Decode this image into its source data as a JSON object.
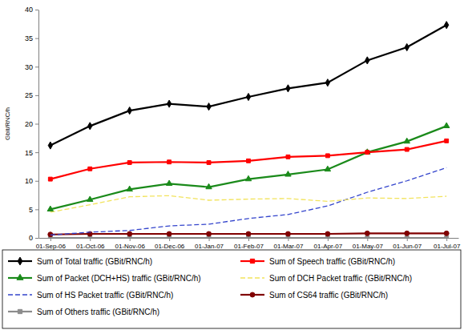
{
  "chart_data": {
    "type": "line",
    "y_label": "Gbit/RNC/h",
    "categories": [
      "01-Sep-06",
      "01-Oct-06",
      "01-Nov-06",
      "01-Dec-06",
      "01-Jan-07",
      "01-Feb-07",
      "01-Mar-07",
      "01-Apr-07",
      "01-May-07",
      "01-Jun-07",
      "01-Jul-07"
    ],
    "ylim": [
      0,
      40
    ],
    "yticks": [
      0,
      5,
      10,
      15,
      20,
      25,
      30,
      35,
      40
    ],
    "grid": false,
    "legend": "bottom",
    "series": [
      {
        "name": "Sum of Total traffic (GBit/RNC/h)",
        "color": "#000000",
        "marker": "diamond",
        "line_style": "solid",
        "values": [
          16.2,
          19.6,
          22.3,
          23.5,
          23.0,
          24.7,
          26.2,
          27.2,
          31.1,
          33.4,
          37.3
        ]
      },
      {
        "name": "Sum of Speech traffic (GBit/RNC/h)",
        "color": "#ff0000",
        "marker": "square",
        "line_style": "solid",
        "values": [
          10.3,
          12.1,
          13.2,
          13.3,
          13.2,
          13.5,
          14.2,
          14.4,
          15.0,
          15.5,
          17.0
        ]
      },
      {
        "name": "Sum of Packet (DCH+HS) traffic (GBit/RNC/h)",
        "color": "#1a8a1a",
        "marker": "triangle",
        "line_style": "solid",
        "values": [
          5.0,
          6.7,
          8.5,
          9.5,
          8.9,
          10.3,
          11.1,
          12.0,
          15.0,
          16.9,
          19.6
        ]
      },
      {
        "name": "Sum of DCH Packet traffic (GBit/RNC/h)",
        "color": "#f2e35c",
        "marker": "none",
        "line_style": "dashed",
        "values": [
          4.5,
          5.8,
          7.2,
          7.4,
          6.6,
          6.8,
          6.9,
          6.4,
          7.0,
          6.9,
          7.3
        ]
      },
      {
        "name": "Sum of HS Packet traffic (GBit/RNC/h)",
        "color": "#3344cc",
        "marker": "none",
        "line_style": "dashed",
        "values": [
          0.5,
          1.0,
          1.3,
          2.1,
          2.4,
          3.4,
          4.1,
          5.6,
          8.0,
          10.0,
          12.3
        ]
      },
      {
        "name": "Sum of CS64 traffic (GBit/RNC/h)",
        "color": "#800000",
        "marker": "circle",
        "line_style": "solid",
        "values": [
          0.6,
          0.7,
          0.7,
          0.7,
          0.7,
          0.7,
          0.7,
          0.7,
          0.8,
          0.8,
          0.8
        ]
      },
      {
        "name": "Sum of Others traffic (GBit/RNC/h)",
        "color": "#8c8c8c",
        "marker": "square",
        "line_style": "solid",
        "values": [
          0,
          0,
          0,
          0,
          0,
          0,
          0,
          0,
          0,
          0,
          0
        ]
      }
    ]
  }
}
